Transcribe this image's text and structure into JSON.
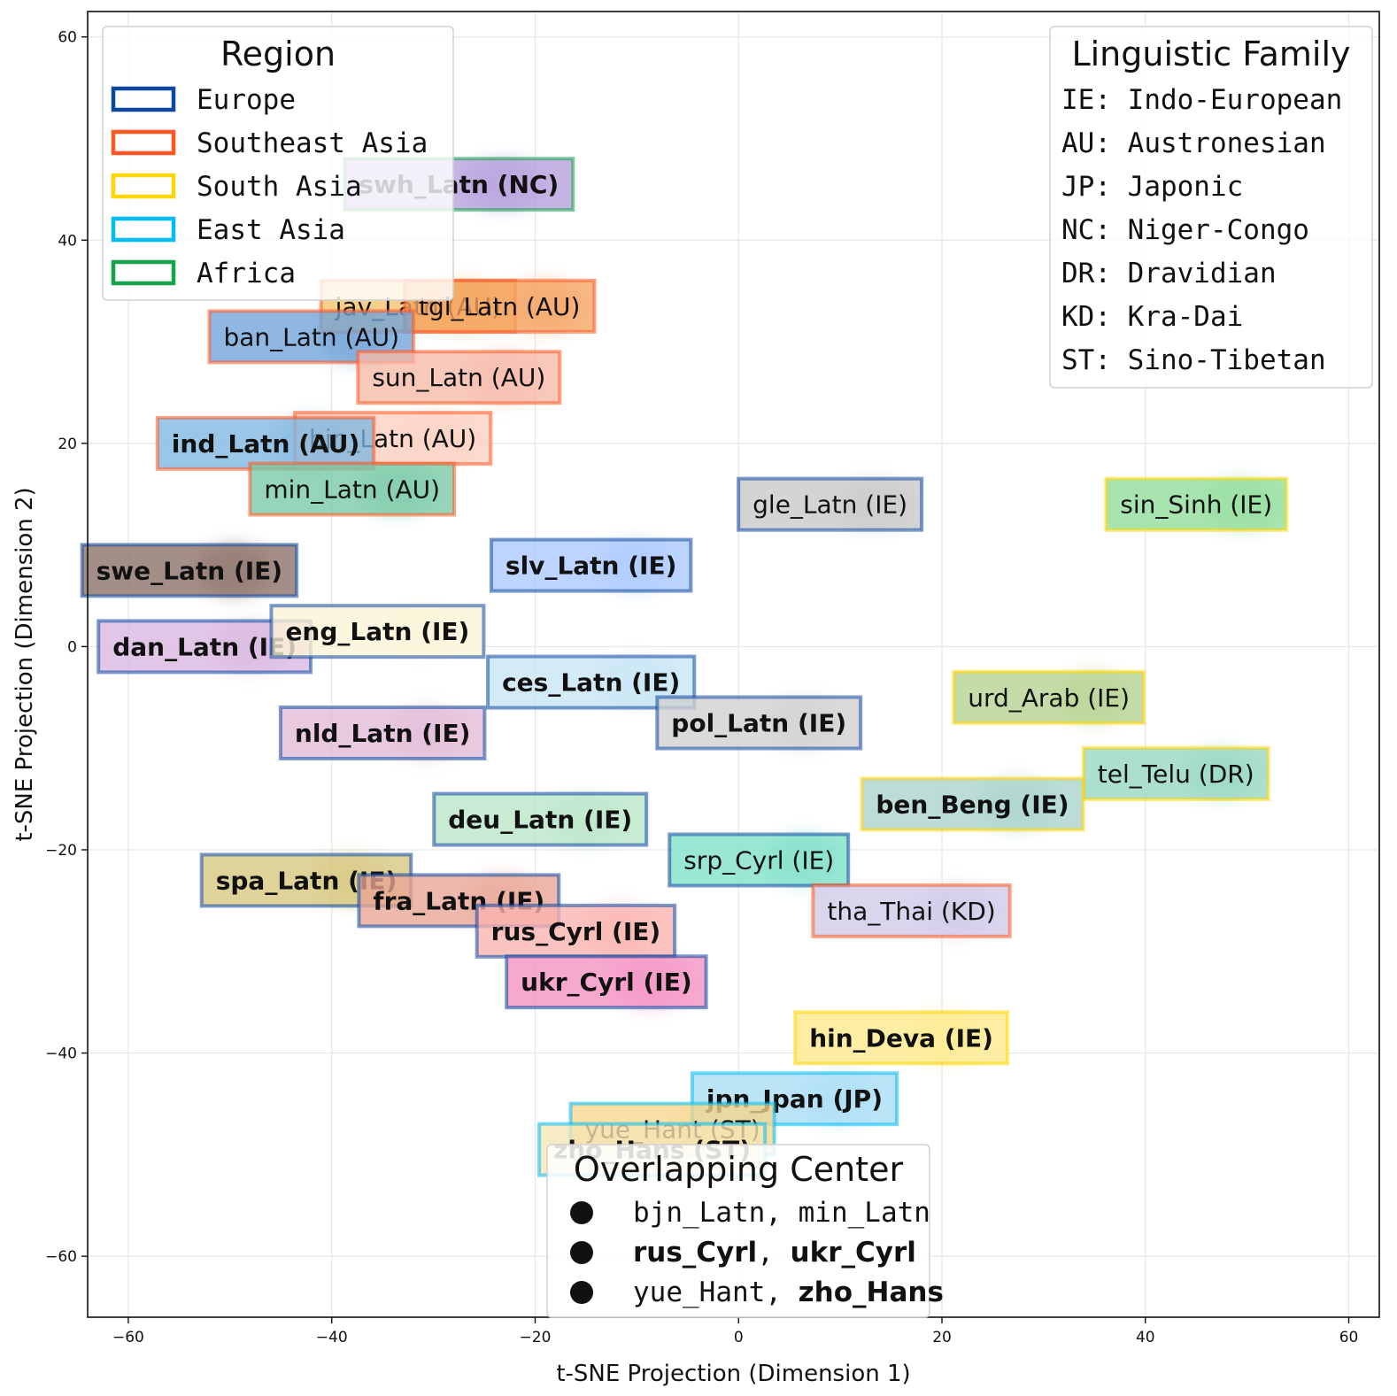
{
  "chart_data": {
    "type": "scatter",
    "title": "",
    "xlabel": "t-SNE Projection (Dimension 1)",
    "ylabel": "t-SNE Projection (Dimension 2)",
    "xlim": [
      -64,
      63
    ],
    "ylim": [
      -66,
      62.5
    ],
    "xticks": [
      -60,
      -40,
      -20,
      0,
      20,
      40,
      60
    ],
    "yticks": [
      -60,
      -40,
      -20,
      0,
      20,
      40,
      60
    ],
    "grid": true,
    "region_colors": {
      "Europe": "#0d47a1",
      "Southeast Asia": "#ff5722",
      "South Asia": "#ffd600",
      "East Asia": "#00bcf2",
      "Africa": "#16a34a"
    },
    "labels": [
      {
        "text": "swh_Latn (NC)",
        "x": -27.5,
        "y": 45.5,
        "region": "Africa",
        "fill": "#b39ddb",
        "bold": true
      },
      {
        "text": "jav_Latn (AU)",
        "x": -31.5,
        "y": 33.5,
        "region": "Southeast Asia",
        "fill": "#f5c36a",
        "bold": false
      },
      {
        "text": "tgl_Latn (AU)",
        "x": -23.5,
        "y": 33.5,
        "region": "Southeast Asia",
        "fill": "#f6a361",
        "bold": false
      },
      {
        "text": "ban_Latn (AU)",
        "x": -42,
        "y": 30.5,
        "region": "Southeast Asia",
        "fill": "#6fa3d8",
        "bold": false
      },
      {
        "text": "sun_Latn (AU)",
        "x": -27.5,
        "y": 26.5,
        "region": "Southeast Asia",
        "fill": "#f6b8a8",
        "bold": false
      },
      {
        "text": "bjn_Latn (AU)",
        "x": -34,
        "y": 20.5,
        "region": "Southeast Asia",
        "fill": "#fcd0c0",
        "bold": false
      },
      {
        "text": "ind_Latn (AU)",
        "x": -46.5,
        "y": 20,
        "region": "Southeast Asia",
        "fill": "#7eb6e0",
        "bold": true
      },
      {
        "text": "min_Latn (AU)",
        "x": -38,
        "y": 15.5,
        "region": "Southeast Asia",
        "fill": "#77c9a5",
        "bold": false
      },
      {
        "text": "gle_Latn (IE)",
        "x": 9,
        "y": 14,
        "region": "Europe",
        "fill": "#c8c8c8",
        "bold": false
      },
      {
        "text": "sin_Sinh (IE)",
        "x": 45,
        "y": 14,
        "region": "South Asia",
        "fill": "#8fdc9a",
        "bold": false
      },
      {
        "text": "swe_Latn (IE)",
        "x": -54,
        "y": 7.5,
        "region": "Europe",
        "fill": "#8b6f66",
        "bold": true
      },
      {
        "text": "slv_Latn (IE)",
        "x": -14.5,
        "y": 8,
        "region": "Europe",
        "fill": "#a9c8ff",
        "bold": true
      },
      {
        "text": "dan_Latn (IE)",
        "x": -52.5,
        "y": 0,
        "region": "Europe",
        "fill": "#d9b6e0",
        "bold": true
      },
      {
        "text": "eng_Latn (IE)",
        "x": -35.5,
        "y": 1.5,
        "region": "Europe",
        "fill": "#fdf3d6",
        "bold": true
      },
      {
        "text": "ces_Latn (IE)",
        "x": -14.5,
        "y": -3.5,
        "region": "Europe",
        "fill": "#c6e4f5",
        "bold": true
      },
      {
        "text": "urd_Arab (IE)",
        "x": 30.5,
        "y": -5,
        "region": "South Asia",
        "fill": "#b5d28f",
        "bold": false
      },
      {
        "text": "nld_Latn (IE)",
        "x": -35,
        "y": -8.5,
        "region": "Europe",
        "fill": "#e2bad6",
        "bold": true
      },
      {
        "text": "pol_Latn (IE)",
        "x": 2,
        "y": -7.5,
        "region": "Europe",
        "fill": "#cfcfcf",
        "bold": true
      },
      {
        "text": "tel_Telu (DR)",
        "x": 43,
        "y": -12.5,
        "region": "South Asia",
        "fill": "#95d6c2",
        "bold": false
      },
      {
        "text": "ben_Beng (IE)",
        "x": 23,
        "y": -15.5,
        "region": "South Asia",
        "fill": "#a8d2cc",
        "bold": true
      },
      {
        "text": "deu_Latn (IE)",
        "x": -19.5,
        "y": -17,
        "region": "Europe",
        "fill": "#b9e5c8",
        "bold": true
      },
      {
        "text": "srp_Cyrl (IE)",
        "x": 2,
        "y": -21,
        "region": "Europe",
        "fill": "#7ee0c8",
        "bold": false
      },
      {
        "text": "spa_Latn (IE)",
        "x": -42.5,
        "y": -23,
        "region": "Europe",
        "fill": "#d6c77e",
        "bold": true
      },
      {
        "text": "fra_Latn (IE)",
        "x": -27.5,
        "y": -25,
        "region": "Europe",
        "fill": "#e8a595",
        "bold": true
      },
      {
        "text": "tha_Thai (KD)",
        "x": 17,
        "y": -26,
        "region": "Southeast Asia",
        "fill": "#d0c8e8",
        "bold": false
      },
      {
        "text": "rus_Cyrl (IE)",
        "x": -16,
        "y": -28,
        "region": "Europe",
        "fill": "#fbb4ae",
        "bold": true
      },
      {
        "text": "ukr_Cyrl (IE)",
        "x": -13,
        "y": -33,
        "region": "Europe",
        "fill": "#f48fc1",
        "bold": true
      },
      {
        "text": "hin_Deva (IE)",
        "x": 16,
        "y": -38.5,
        "region": "South Asia",
        "fill": "#fde98a",
        "bold": true
      },
      {
        "text": "jpn_Jpan (JP)",
        "x": 5.5,
        "y": -44.5,
        "region": "East Asia",
        "fill": "#a8dcf5",
        "bold": true
      },
      {
        "text": "yue_Hant (ST)",
        "x": -6.5,
        "y": -47.5,
        "region": "East Asia",
        "fill": "#f5d68c",
        "bold": false
      },
      {
        "text": "zho_Hans (ST)",
        "x": -8.5,
        "y": -49.5,
        "region": "East Asia",
        "fill": "#f5e6b5",
        "bold": true
      }
    ],
    "legends": {
      "region": {
        "title": "Region",
        "placement": "top-left",
        "entries": [
          {
            "label": "Europe",
            "color": "#0d47a1"
          },
          {
            "label": "Southeast Asia",
            "color": "#ff5722"
          },
          {
            "label": "South Asia",
            "color": "#ffd600"
          },
          {
            "label": "East Asia",
            "color": "#00bcf2"
          },
          {
            "label": "Africa",
            "color": "#16a34a"
          }
        ]
      },
      "family": {
        "title": "Linguistic Family",
        "placement": "top-right",
        "entries": [
          "IE: Indo-European",
          "AU: Austronesian",
          "JP: Japonic",
          "NC: Niger-Congo",
          "DR: Dravidian",
          "KD: Kra-Dai",
          "ST: Sino-Tibetan"
        ]
      },
      "overlap": {
        "title": "Overlapping Center",
        "placement": "bottom-center",
        "entries": [
          [
            {
              "text": "bjn_Latn",
              "bold": false
            },
            {
              "text": ", ",
              "bold": false
            },
            {
              "text": "min_Latn",
              "bold": false
            }
          ],
          [
            {
              "text": "rus_Cyrl",
              "bold": true
            },
            {
              "text": ", ",
              "bold": false
            },
            {
              "text": "ukr_Cyrl",
              "bold": true
            }
          ],
          [
            {
              "text": "yue_Hant",
              "bold": false
            },
            {
              "text": ", ",
              "bold": false
            },
            {
              "text": "zho_Hans",
              "bold": true
            }
          ]
        ]
      }
    }
  }
}
